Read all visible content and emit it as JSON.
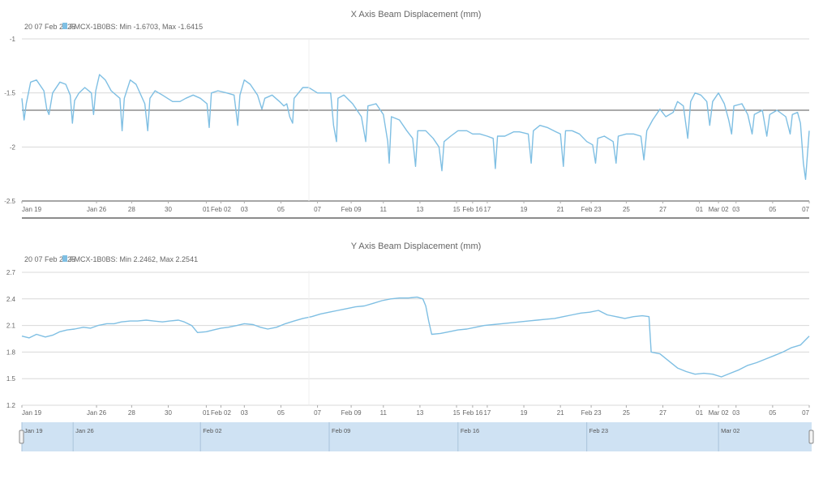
{
  "colors": {
    "series": "#7fbfe3",
    "grid": "#d8d8d8",
    "axis": "#666666",
    "text": "#666666",
    "navigator_fill": "#cfe2f3",
    "ref_line": "#555555"
  },
  "x_ticks": {
    "labels": [
      "Jan 19",
      "Jan 26",
      "28",
      "30",
      "01",
      "Feb 02",
      "03",
      "05",
      "07",
      "Feb 09",
      "11",
      "13",
      "15",
      "Feb 16",
      "17",
      "19",
      "21",
      "Feb 23",
      "25",
      "27",
      "01",
      "Mar 02",
      "03",
      "05",
      "07"
    ],
    "values": [
      0,
      5.1,
      7.5,
      10.0,
      12.6,
      13.6,
      15.2,
      17.7,
      20.2,
      22.5,
      24.7,
      27.2,
      29.7,
      30.8,
      31.8,
      34.3,
      36.8,
      38.9,
      41.3,
      43.8,
      46.3,
      47.6,
      48.8,
      51.3,
      53.8
    ]
  },
  "navigator": {
    "labels": [
      "Jan 19",
      "Jan 26",
      "Feb 02",
      "Feb 09",
      "Feb 16",
      "Feb 23",
      "Mar 02"
    ],
    "values": [
      0,
      3.5,
      12.2,
      21.0,
      29.8,
      38.6,
      47.6
    ]
  },
  "chart_data": [
    {
      "type": "line",
      "title": "X Axis Beam Displacement (mm)",
      "legend_prefix": "20 07 Feb 2025",
      "series_label": "FMCX-1B0BS: Min -1.6703, Max -1.6415",
      "ylim": [
        -2.5,
        -1
      ],
      "yticks": [
        -1,
        -1.5,
        -2,
        -2.5
      ],
      "yticklabels": [
        "-1",
        "-1.5",
        "-2",
        "-2.5"
      ],
      "reference_line": -1.66,
      "xlim": [
        0,
        53.8
      ],
      "grid": true,
      "points": [
        [
          0,
          -1.55
        ],
        [
          0.15,
          -1.75
        ],
        [
          0.3,
          -1.6
        ],
        [
          0.6,
          -1.4
        ],
        [
          1.0,
          -1.38
        ],
        [
          1.5,
          -1.48
        ],
        [
          1.7,
          -1.65
        ],
        [
          1.85,
          -1.7
        ],
        [
          2.1,
          -1.5
        ],
        [
          2.6,
          -1.4
        ],
        [
          3.0,
          -1.42
        ],
        [
          3.3,
          -1.52
        ],
        [
          3.45,
          -1.78
        ],
        [
          3.6,
          -1.57
        ],
        [
          3.9,
          -1.5
        ],
        [
          4.3,
          -1.45
        ],
        [
          4.75,
          -1.5
        ],
        [
          4.9,
          -1.7
        ],
        [
          5.05,
          -1.48
        ],
        [
          5.3,
          -1.33
        ],
        [
          5.7,
          -1.38
        ],
        [
          6.1,
          -1.48
        ],
        [
          6.7,
          -1.55
        ],
        [
          6.85,
          -1.85
        ],
        [
          7.0,
          -1.55
        ],
        [
          7.4,
          -1.38
        ],
        [
          7.8,
          -1.42
        ],
        [
          8.4,
          -1.6
        ],
        [
          8.6,
          -1.85
        ],
        [
          8.75,
          -1.55
        ],
        [
          9.1,
          -1.48
        ],
        [
          9.6,
          -1.52
        ],
        [
          10.3,
          -1.58
        ],
        [
          10.8,
          -1.58
        ],
        [
          11.2,
          -1.55
        ],
        [
          11.7,
          -1.52
        ],
        [
          12.2,
          -1.55
        ],
        [
          12.65,
          -1.6
        ],
        [
          12.8,
          -1.82
        ],
        [
          12.95,
          -1.5
        ],
        [
          13.4,
          -1.48
        ],
        [
          14.0,
          -1.5
        ],
        [
          14.5,
          -1.52
        ],
        [
          14.75,
          -1.8
        ],
        [
          14.9,
          -1.52
        ],
        [
          15.2,
          -1.38
        ],
        [
          15.6,
          -1.42
        ],
        [
          16.1,
          -1.52
        ],
        [
          16.4,
          -1.65
        ],
        [
          16.6,
          -1.55
        ],
        [
          17.1,
          -1.52
        ],
        [
          17.6,
          -1.58
        ],
        [
          17.9,
          -1.62
        ],
        [
          18.1,
          -1.6
        ],
        [
          18.3,
          -1.72
        ],
        [
          18.5,
          -1.78
        ],
        [
          18.6,
          -1.55
        ],
        [
          19.2,
          -1.45
        ],
        [
          19.6,
          -1.45
        ],
        [
          20.2,
          -1.5
        ],
        [
          21.1,
          -1.5
        ],
        [
          21.3,
          -1.8
        ],
        [
          21.5,
          -1.95
        ],
        [
          21.6,
          -1.55
        ],
        [
          22.0,
          -1.52
        ],
        [
          22.6,
          -1.6
        ],
        [
          23.2,
          -1.72
        ],
        [
          23.5,
          -1.95
        ],
        [
          23.65,
          -1.62
        ],
        [
          24.2,
          -1.6
        ],
        [
          24.7,
          -1.7
        ],
        [
          25.0,
          -1.95
        ],
        [
          25.1,
          -2.15
        ],
        [
          25.25,
          -1.72
        ],
        [
          25.8,
          -1.75
        ],
        [
          26.3,
          -1.85
        ],
        [
          26.7,
          -1.92
        ],
        [
          26.9,
          -2.18
        ],
        [
          27.05,
          -1.85
        ],
        [
          27.6,
          -1.85
        ],
        [
          28.1,
          -1.92
        ],
        [
          28.5,
          -2.0
        ],
        [
          28.7,
          -2.22
        ],
        [
          28.85,
          -1.95
        ],
        [
          29.3,
          -1.9
        ],
        [
          29.8,
          -1.85
        ],
        [
          30.4,
          -1.85
        ],
        [
          30.8,
          -1.88
        ],
        [
          31.3,
          -1.88
        ],
        [
          31.8,
          -1.9
        ],
        [
          32.2,
          -1.92
        ],
        [
          32.35,
          -2.2
        ],
        [
          32.5,
          -1.9
        ],
        [
          33.0,
          -1.9
        ],
        [
          33.6,
          -1.86
        ],
        [
          34.0,
          -1.86
        ],
        [
          34.6,
          -1.88
        ],
        [
          34.8,
          -2.15
        ],
        [
          34.95,
          -1.85
        ],
        [
          35.4,
          -1.8
        ],
        [
          35.9,
          -1.82
        ],
        [
          36.5,
          -1.86
        ],
        [
          36.8,
          -1.88
        ],
        [
          37.0,
          -2.18
        ],
        [
          37.15,
          -1.85
        ],
        [
          37.6,
          -1.85
        ],
        [
          38.1,
          -1.88
        ],
        [
          38.6,
          -1.95
        ],
        [
          39.0,
          -1.98
        ],
        [
          39.2,
          -2.15
        ],
        [
          39.35,
          -1.92
        ],
        [
          39.8,
          -1.9
        ],
        [
          40.4,
          -1.95
        ],
        [
          40.6,
          -2.15
        ],
        [
          40.75,
          -1.9
        ],
        [
          41.3,
          -1.88
        ],
        [
          41.8,
          -1.88
        ],
        [
          42.3,
          -1.9
        ],
        [
          42.5,
          -2.12
        ],
        [
          42.7,
          -1.85
        ],
        [
          43.1,
          -1.75
        ],
        [
          43.6,
          -1.65
        ],
        [
          44.0,
          -1.72
        ],
        [
          44.5,
          -1.68
        ],
        [
          44.8,
          -1.58
        ],
        [
          45.2,
          -1.62
        ],
        [
          45.5,
          -1.92
        ],
        [
          45.7,
          -1.58
        ],
        [
          46.0,
          -1.5
        ],
        [
          46.4,
          -1.52
        ],
        [
          46.8,
          -1.58
        ],
        [
          47.0,
          -1.8
        ],
        [
          47.2,
          -1.58
        ],
        [
          47.6,
          -1.5
        ],
        [
          48.0,
          -1.6
        ],
        [
          48.3,
          -1.75
        ],
        [
          48.5,
          -1.88
        ],
        [
          48.65,
          -1.62
        ],
        [
          49.2,
          -1.6
        ],
        [
          49.6,
          -1.7
        ],
        [
          49.9,
          -1.88
        ],
        [
          50.05,
          -1.7
        ],
        [
          50.6,
          -1.66
        ],
        [
          50.9,
          -1.9
        ],
        [
          51.1,
          -1.7
        ],
        [
          51.6,
          -1.66
        ],
        [
          52.2,
          -1.72
        ],
        [
          52.5,
          -1.88
        ],
        [
          52.65,
          -1.7
        ],
        [
          53.0,
          -1.68
        ],
        [
          53.2,
          -1.78
        ],
        [
          53.4,
          -2.15
        ],
        [
          53.55,
          -2.3
        ],
        [
          53.8,
          -1.85
        ]
      ]
    },
    {
      "type": "line",
      "title": "Y Axis Beam Displacement (mm)",
      "legend_prefix": "20 07 Feb 2025",
      "series_label": "FMCX-1B0BS: Min 2.2462, Max 2.2541",
      "ylim": [
        1.2,
        2.7
      ],
      "yticks": [
        2.7,
        2.4,
        2.1,
        1.8,
        1.5,
        1.2
      ],
      "yticklabels": [
        "2.7",
        "2.4",
        "2.1",
        "1.8",
        "1.5",
        "1.2"
      ],
      "xlim": [
        0,
        53.8
      ],
      "grid": true,
      "points": [
        [
          0,
          1.98
        ],
        [
          0.5,
          1.96
        ],
        [
          1.0,
          2.0
        ],
        [
          1.6,
          1.97
        ],
        [
          2.1,
          1.99
        ],
        [
          2.6,
          2.03
        ],
        [
          3.1,
          2.05
        ],
        [
          3.6,
          2.06
        ],
        [
          4.2,
          2.08
        ],
        [
          4.7,
          2.07
        ],
        [
          5.2,
          2.1
        ],
        [
          5.8,
          2.12
        ],
        [
          6.3,
          2.12
        ],
        [
          6.8,
          2.14
        ],
        [
          7.4,
          2.15
        ],
        [
          7.9,
          2.15
        ],
        [
          8.5,
          2.16
        ],
        [
          9.0,
          2.15
        ],
        [
          9.6,
          2.14
        ],
        [
          10.1,
          2.15
        ],
        [
          10.7,
          2.16
        ],
        [
          11.1,
          2.14
        ],
        [
          11.6,
          2.1
        ],
        [
          12.0,
          2.02
        ],
        [
          12.6,
          2.03
        ],
        [
          13.1,
          2.05
        ],
        [
          13.6,
          2.07
        ],
        [
          14.1,
          2.08
        ],
        [
          14.7,
          2.1
        ],
        [
          15.2,
          2.12
        ],
        [
          15.8,
          2.11
        ],
        [
          16.3,
          2.08
        ],
        [
          16.8,
          2.06
        ],
        [
          17.4,
          2.08
        ],
        [
          18.0,
          2.12
        ],
        [
          18.6,
          2.15
        ],
        [
          19.2,
          2.18
        ],
        [
          19.8,
          2.2
        ],
        [
          20.4,
          2.23
        ],
        [
          21.0,
          2.25
        ],
        [
          21.6,
          2.27
        ],
        [
          22.2,
          2.29
        ],
        [
          22.8,
          2.31
        ],
        [
          23.4,
          2.32
        ],
        [
          24.0,
          2.35
        ],
        [
          24.6,
          2.38
        ],
        [
          25.2,
          2.4
        ],
        [
          25.8,
          2.41
        ],
        [
          26.4,
          2.41
        ],
        [
          27.0,
          2.42
        ],
        [
          27.4,
          2.4
        ],
        [
          27.6,
          2.32
        ],
        [
          27.8,
          2.15
        ],
        [
          28.0,
          2.0
        ],
        [
          28.6,
          2.01
        ],
        [
          29.2,
          2.03
        ],
        [
          29.8,
          2.05
        ],
        [
          30.4,
          2.06
        ],
        [
          31.0,
          2.08
        ],
        [
          31.6,
          2.1
        ],
        [
          32.2,
          2.11
        ],
        [
          32.8,
          2.12
        ],
        [
          33.4,
          2.13
        ],
        [
          34.0,
          2.14
        ],
        [
          34.6,
          2.15
        ],
        [
          35.2,
          2.16
        ],
        [
          35.8,
          2.17
        ],
        [
          36.4,
          2.18
        ],
        [
          37.0,
          2.2
        ],
        [
          37.6,
          2.22
        ],
        [
          38.2,
          2.24
        ],
        [
          38.8,
          2.25
        ],
        [
          39.4,
          2.27
        ],
        [
          40.0,
          2.22
        ],
        [
          40.6,
          2.2
        ],
        [
          41.2,
          2.18
        ],
        [
          41.8,
          2.2
        ],
        [
          42.4,
          2.21
        ],
        [
          42.85,
          2.2
        ],
        [
          43.0,
          1.8
        ],
        [
          43.6,
          1.78
        ],
        [
          44.2,
          1.7
        ],
        [
          44.8,
          1.62
        ],
        [
          45.4,
          1.58
        ],
        [
          46.0,
          1.55
        ],
        [
          46.6,
          1.56
        ],
        [
          47.2,
          1.55
        ],
        [
          47.8,
          1.52
        ],
        [
          48.4,
          1.56
        ],
        [
          49.0,
          1.6
        ],
        [
          49.6,
          1.65
        ],
        [
          50.2,
          1.68
        ],
        [
          50.8,
          1.72
        ],
        [
          51.4,
          1.76
        ],
        [
          52.0,
          1.8
        ],
        [
          52.6,
          1.85
        ],
        [
          53.2,
          1.88
        ],
        [
          53.8,
          1.98
        ]
      ]
    }
  ]
}
